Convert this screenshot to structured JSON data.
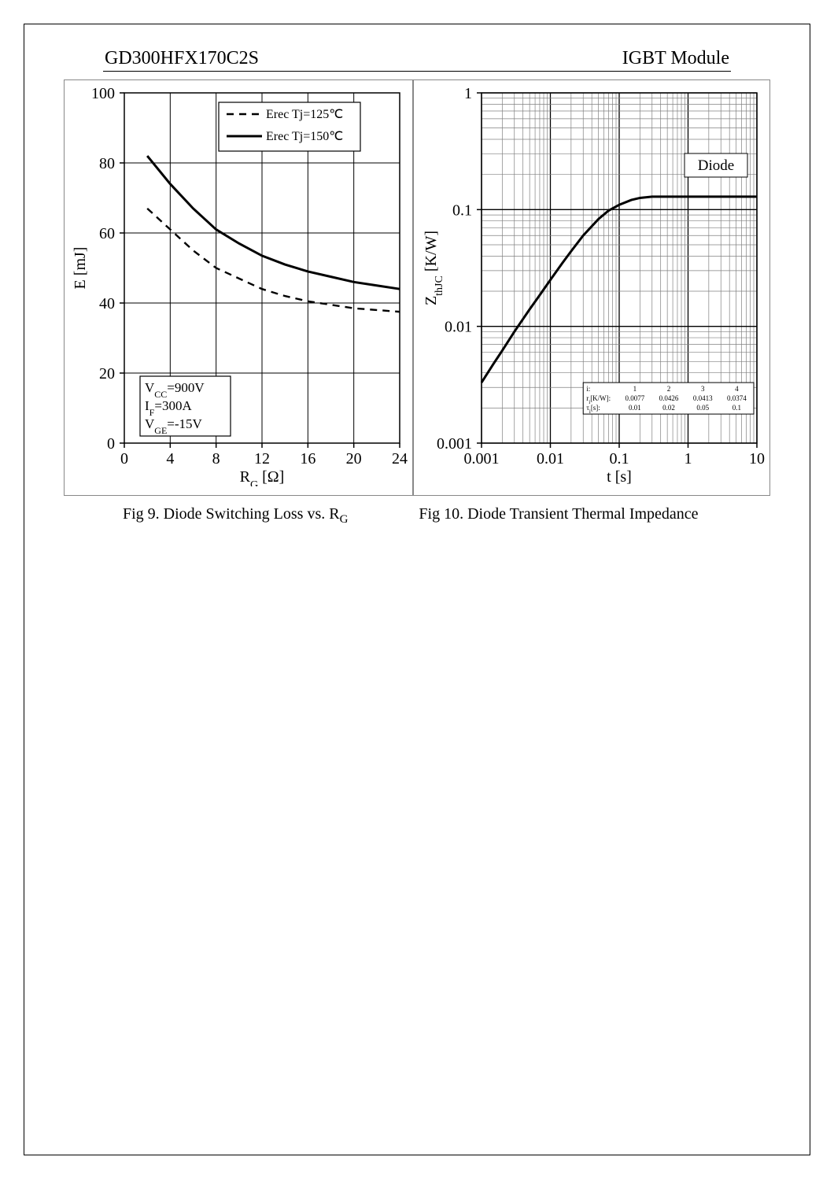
{
  "header": {
    "part_number": "GD300HFX170C2S",
    "module_type": "IGBT Module"
  },
  "fig9": {
    "type": "line",
    "xlabel": "R",
    "xlabel_sub": "G",
    "xlabel_unit": " [Ω]",
    "ylabel": "E [mJ]",
    "xlim": [
      0,
      24
    ],
    "ylim": [
      0,
      100
    ],
    "xticks": [
      0,
      4,
      8,
      12,
      16,
      20,
      24
    ],
    "yticks": [
      0,
      20,
      40,
      60,
      80,
      100
    ],
    "axis_color": "#000",
    "grid_color": "#000",
    "background": "#fff",
    "axis_fontsize": 20,
    "tick_fontsize": 20,
    "legend": {
      "border": "#000",
      "items": [
        {
          "label": "Erec Tj=125℃",
          "dash": true
        },
        {
          "label": "Erec Tj=150℃",
          "dash": false
        }
      ]
    },
    "conditions": {
      "border": "#000",
      "lines": [
        {
          "pre": "V",
          "sub": "CC",
          "post": "=900V"
        },
        {
          "pre": "I",
          "sub": "F",
          "post": "=300A"
        },
        {
          "pre": "V",
          "sub": "GE",
          "post": "=-15V"
        }
      ]
    },
    "series": [
      {
        "name": "Erec Tj=150℃",
        "dash": false,
        "color": "#000",
        "width": 3,
        "points": [
          [
            2,
            82
          ],
          [
            4,
            74
          ],
          [
            6,
            67
          ],
          [
            8,
            61
          ],
          [
            10,
            57
          ],
          [
            12,
            53.5
          ],
          [
            14,
            51
          ],
          [
            16,
            49
          ],
          [
            18,
            47.5
          ],
          [
            20,
            46
          ],
          [
            22,
            45
          ],
          [
            24,
            44
          ]
        ]
      },
      {
        "name": "Erec Tj=125℃",
        "dash": true,
        "color": "#000",
        "width": 2.4,
        "points": [
          [
            2,
            67
          ],
          [
            4,
            61
          ],
          [
            6,
            55
          ],
          [
            8,
            50
          ],
          [
            10,
            47
          ],
          [
            12,
            44
          ],
          [
            14,
            42
          ],
          [
            16,
            40.5
          ],
          [
            18,
            39.5
          ],
          [
            20,
            38.5
          ],
          [
            22,
            38
          ],
          [
            24,
            37.5
          ]
        ]
      }
    ],
    "caption": {
      "pre": "Fig 9. Diode Switching Loss vs. R",
      "sub": "G"
    }
  },
  "fig10": {
    "type": "loglog-line",
    "xlabel": "t [s]",
    "ylabel_pre": "Z",
    "ylabel_sub": "thJC",
    "ylabel_post": " [K/W]",
    "xlim": [
      0.001,
      10
    ],
    "ylim": [
      0.001,
      1
    ],
    "xticks": [
      "0.001",
      "0.01",
      "0.1",
      "1",
      "10"
    ],
    "yticks": [
      "0.001",
      "0.01",
      "0.1",
      "1"
    ],
    "axis_color": "#000",
    "grid_color": "#808080",
    "background": "#fff",
    "axis_fontsize": 20,
    "tick_fontsize": 20,
    "label": "Diode",
    "curve": {
      "color": "#000",
      "width": 3,
      "points": [
        [
          0.001,
          0.0033
        ],
        [
          0.0015,
          0.0048
        ],
        [
          0.002,
          0.0062
        ],
        [
          0.003,
          0.009
        ],
        [
          0.005,
          0.014
        ],
        [
          0.007,
          0.0185
        ],
        [
          0.01,
          0.025
        ],
        [
          0.015,
          0.035
        ],
        [
          0.02,
          0.044
        ],
        [
          0.03,
          0.06
        ],
        [
          0.05,
          0.083
        ],
        [
          0.07,
          0.098
        ],
        [
          0.1,
          0.11
        ],
        [
          0.15,
          0.121
        ],
        [
          0.2,
          0.126
        ],
        [
          0.3,
          0.129
        ],
        [
          0.5,
          0.129
        ],
        [
          1,
          0.129
        ],
        [
          3,
          0.129
        ],
        [
          10,
          0.129
        ]
      ]
    },
    "table": {
      "border": "#000",
      "fontsize": 9,
      "row_labels": [
        "i:",
        "r",
        "τ"
      ],
      "row_label_sub": [
        "",
        "i",
        "i"
      ],
      "row_label_unit": [
        "",
        "[K/W]:",
        "[s]:"
      ],
      "cols": [
        {
          "i": "1",
          "r": "0.0077",
          "t": "0.01"
        },
        {
          "i": "2",
          "r": "0.0426",
          "t": "0.02"
        },
        {
          "i": "3",
          "r": "0.0413",
          "t": "0.05"
        },
        {
          "i": "4",
          "r": "0.0374",
          "t": "0.1"
        }
      ]
    },
    "caption": "Fig 10. Diode Transient Thermal Impedance"
  }
}
